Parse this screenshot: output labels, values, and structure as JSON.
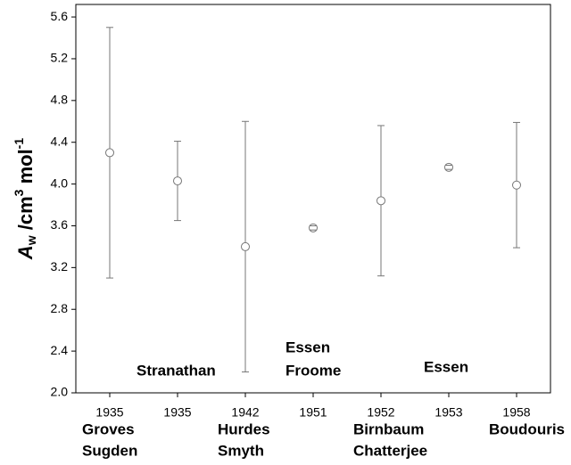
{
  "chart_data": {
    "type": "errorbar",
    "ylabel": [
      "A",
      "w",
      " /cm",
      "3",
      " mol",
      "-1"
    ],
    "categories": [
      "1935",
      "1935",
      "1942",
      "1951",
      "1952",
      "1953",
      "1958"
    ],
    "labels": [
      [
        "Groves",
        "Sugden"
      ],
      [
        "Stranathan"
      ],
      [
        "Hurdes",
        "Smyth"
      ],
      [
        "Essen",
        "Froome"
      ],
      [
        "Birnbaum",
        "Chatterjee"
      ],
      [
        "Essen"
      ],
      [
        "Boudouris"
      ]
    ],
    "values": [
      4.3,
      4.03,
      3.4,
      3.58,
      3.84,
      4.16,
      3.99
    ],
    "errors": [
      1.2,
      0.38,
      1.2,
      0.02,
      0.72,
      0.02,
      0.6
    ],
    "color": "#777777",
    "ylim": [
      2.0,
      5.72
    ],
    "yticks": [
      {
        "value": 2.0,
        "label": "2.0"
      },
      2.4,
      2.8,
      3.2,
      3.6,
      {
        "value": 4.0,
        "label": "4.0"
      },
      4.4,
      4.8,
      5.2,
      5.6
    ]
  }
}
